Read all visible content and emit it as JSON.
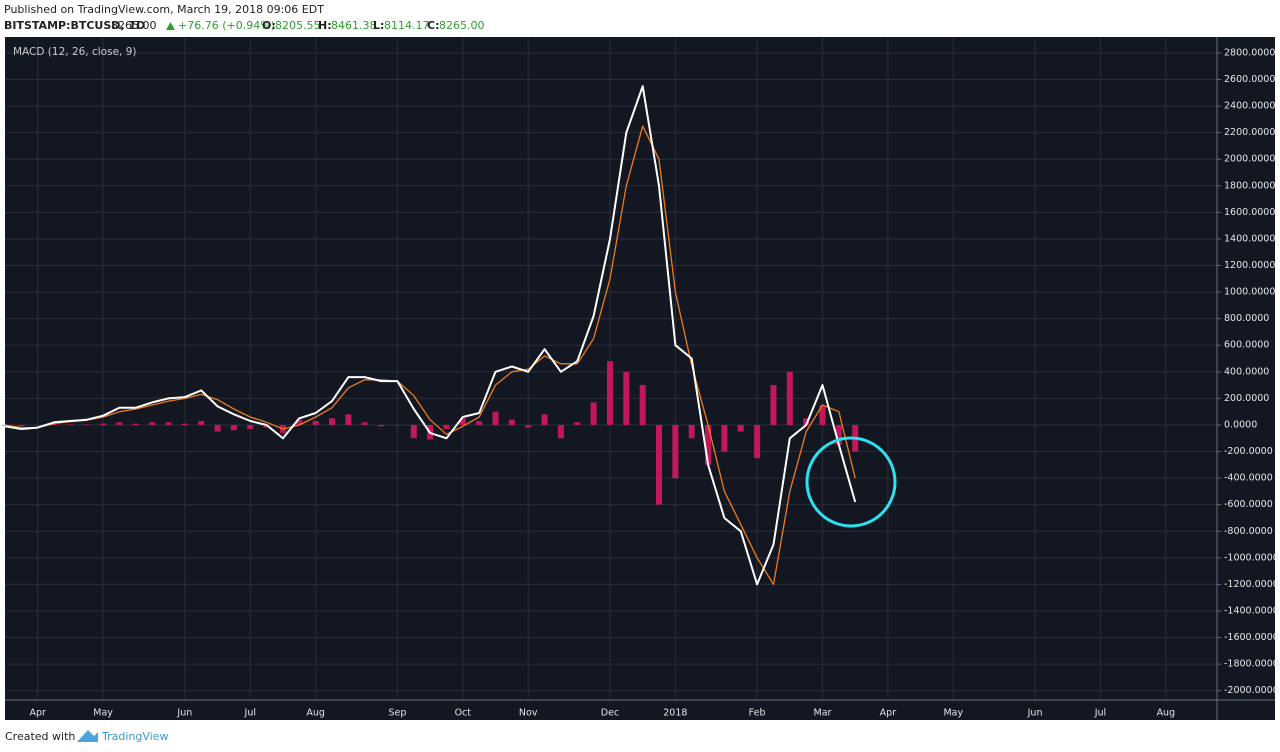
{
  "header": {
    "published": "Published on TradingView.com, March 19, 2018 09:06 EDT",
    "symbol": "BITSTAMP:BTCUSD, 1D",
    "last": "8265.00",
    "change": "+76.76 (+0.94%)",
    "ohlc": [
      {
        "label": "O:",
        "value": "8205.55"
      },
      {
        "label": "H:",
        "value": "8461.38"
      },
      {
        "label": "L:",
        "value": "8114.17"
      },
      {
        "label": "C:",
        "value": "8265.00"
      }
    ]
  },
  "chart_data": {
    "type": "line",
    "title": "MACD (12, 26, close, 9)",
    "categories": [
      null,
      null,
      "Apr",
      null,
      null,
      null,
      "May",
      null,
      null,
      null,
      null,
      "Jun",
      null,
      null,
      null,
      "Jul",
      null,
      null,
      null,
      "Aug",
      null,
      null,
      null,
      null,
      "Sep",
      null,
      null,
      null,
      "Oct",
      null,
      null,
      null,
      "Nov",
      null,
      null,
      null,
      null,
      "Dec",
      null,
      null,
      null,
      "2018",
      null,
      null,
      null,
      null,
      "Feb",
      null,
      null,
      null,
      "Mar",
      null,
      null,
      null,
      "Apr",
      null,
      null,
      null,
      "May",
      null,
      null,
      null,
      null,
      "Jun",
      null,
      null,
      null,
      "Jul",
      null,
      null,
      null,
      "Aug"
    ],
    "series": [
      {
        "type": "bar",
        "color": "#c2185b",
        "values": [
          0,
          -10,
          0,
          10,
          5,
          5,
          10,
          20,
          10,
          20,
          20,
          10,
          30,
          -50,
          -40,
          -30,
          -20,
          -60,
          40,
          30,
          50,
          80,
          20,
          -10,
          0,
          -100,
          -110,
          -30,
          50,
          30,
          100,
          40,
          -20,
          80,
          -100,
          20,
          170,
          480,
          400,
          300,
          -600,
          -400,
          -100,
          -300,
          -200,
          -50,
          -250,
          300,
          400,
          50,
          150,
          -150,
          -200,
          null,
          null,
          null,
          null,
          null,
          null,
          null,
          null,
          null,
          null,
          null,
          null,
          null,
          null,
          null,
          null,
          null,
          null,
          null
        ]
      },
      {
        "type": "line",
        "color": "#ef7b1a",
        "values": [
          0,
          -20,
          -20,
          10,
          25,
          35,
          60,
          100,
          120,
          150,
          180,
          200,
          230,
          190,
          120,
          60,
          20,
          -30,
          0,
          60,
          130,
          280,
          340,
          340,
          330,
          220,
          40,
          -70,
          -10,
          60,
          300,
          400,
          420,
          520,
          460,
          460,
          650,
          1100,
          1800,
          2250,
          2000,
          1000,
          450,
          0,
          -500,
          -750,
          -1000,
          -1200,
          -500,
          -50,
          150,
          100,
          -400,
          null,
          null,
          null,
          null,
          null,
          null,
          null,
          null,
          null,
          null,
          null,
          null,
          null,
          null,
          null,
          null,
          null,
          null,
          null
        ]
      },
      {
        "type": "line",
        "color": "#ffffff",
        "values": [
          -10,
          -30,
          -20,
          20,
          30,
          40,
          70,
          130,
          130,
          170,
          200,
          210,
          260,
          140,
          80,
          30,
          0,
          -100,
          50,
          90,
          180,
          360,
          360,
          330,
          330,
          120,
          -60,
          -100,
          60,
          90,
          400,
          440,
          400,
          570,
          400,
          480,
          820,
          1400,
          2200,
          2550,
          1800,
          600,
          500,
          -300,
          -700,
          -800,
          -1200,
          -900,
          -100,
          0,
          300,
          -150,
          -580,
          null,
          null,
          null,
          null,
          null,
          null,
          null,
          null,
          null,
          null,
          null,
          null,
          null,
          null,
          null,
          null,
          null,
          null,
          null
        ]
      }
    ],
    "ylim": [
      -2070,
      2920
    ],
    "yticks": [
      {
        "value": -2000,
        "label": "-2000.0000"
      },
      {
        "value": -1800,
        "label": "-1800.0000"
      },
      {
        "value": -1600,
        "label": "-1600.0000"
      },
      {
        "value": -1400,
        "label": "-1400.0000"
      },
      {
        "value": -1200,
        "label": "-1200.0000"
      },
      {
        "value": -1000,
        "label": "-1000.0000"
      },
      {
        "value": -800,
        "label": "-800.0000"
      },
      {
        "value": -600,
        "label": "-600.0000"
      },
      {
        "value": -400,
        "label": "-400.0000"
      },
      {
        "value": -200,
        "label": "-200.0000"
      },
      {
        "value": 0,
        "label": "0.0000"
      },
      {
        "value": 200,
        "label": "200.0000"
      },
      {
        "value": 400,
        "label": "400.0000"
      },
      {
        "value": 600,
        "label": "600.0000"
      },
      {
        "value": 800,
        "label": "800.0000"
      },
      {
        "value": 1000,
        "label": "1000.0000"
      },
      {
        "value": 1200,
        "label": "1200.0000"
      },
      {
        "value": 1400,
        "label": "1400.0000"
      },
      {
        "value": 1600,
        "label": "1600.0000"
      },
      {
        "value": 1800,
        "label": "1800.0000"
      },
      {
        "value": 2000,
        "label": "2000.0000"
      },
      {
        "value": 2200,
        "label": "2200.0000"
      },
      {
        "value": 2400,
        "label": "2400.0000"
      },
      {
        "value": 2600,
        "label": "2600.0000"
      },
      {
        "value": 2800,
        "label": "2800.0000"
      }
    ],
    "grid": true
  },
  "footer": {
    "created": "Created with",
    "brand": "TradingView"
  }
}
